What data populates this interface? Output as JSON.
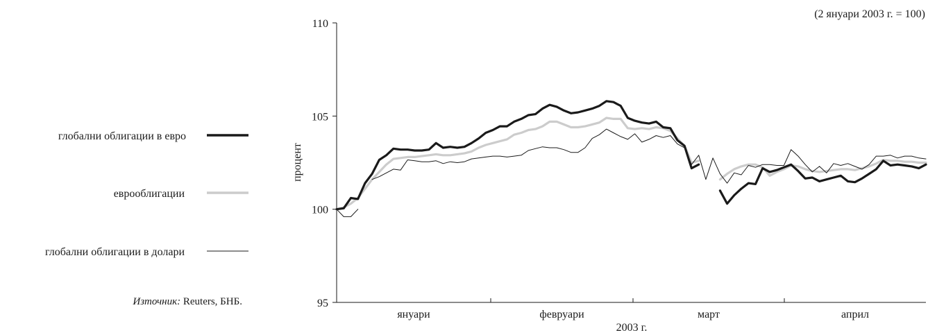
{
  "chart_data": {
    "type": "line",
    "note": "(2 януари 2003 г. = 100)",
    "xlabel": "2003 г.",
    "ylabel": "процент",
    "ylim": [
      95,
      110
    ],
    "yticks": [
      "95",
      "100",
      "105",
      "110"
    ],
    "months": [
      "януари",
      "февруари",
      "март",
      "април"
    ],
    "grid": false,
    "legend_position": "left",
    "series": [
      {
        "name": "глобални облигации в евро",
        "color": "#1a1a1a",
        "values": [
          100.0,
          100.05,
          100.6,
          100.55,
          101.4,
          101.9,
          102.65,
          102.9,
          103.25,
          103.2,
          103.2,
          103.15,
          103.15,
          103.2,
          103.55,
          103.3,
          103.35,
          103.3,
          103.35,
          103.55,
          103.8,
          104.1,
          104.25,
          104.45,
          104.45,
          104.7,
          104.85,
          105.05,
          105.1,
          105.4,
          105.6,
          105.5,
          105.3,
          105.15,
          105.2,
          105.3,
          105.4,
          105.55,
          105.8,
          105.75,
          105.55,
          104.9,
          104.75,
          104.65,
          104.6,
          104.7,
          104.4,
          104.35,
          103.7,
          103.4,
          102.2,
          102.4,
          null,
          null,
          101.0,
          100.3,
          100.75,
          101.1,
          101.4,
          101.35,
          102.2,
          102.0,
          102.1,
          102.25,
          102.4,
          102.05,
          101.65,
          101.7,
          101.5,
          101.6,
          101.7,
          101.8,
          101.5,
          101.45,
          101.65,
          101.9,
          102.15,
          102.6,
          102.35,
          102.4,
          102.35,
          102.3,
          102.2,
          102.4
        ]
      },
      {
        "name": "еврооблигации",
        "color": "#cccccc",
        "values": [
          100.0,
          100.1,
          100.3,
          100.6,
          101.1,
          101.6,
          102.0,
          102.4,
          102.7,
          102.75,
          102.8,
          102.8,
          102.85,
          102.9,
          102.95,
          102.9,
          102.9,
          102.95,
          103.0,
          103.1,
          103.3,
          103.45,
          103.55,
          103.65,
          103.75,
          104.0,
          104.1,
          104.25,
          104.3,
          104.45,
          104.7,
          104.7,
          104.55,
          104.4,
          104.4,
          104.45,
          104.55,
          104.65,
          104.9,
          104.85,
          104.85,
          104.35,
          104.3,
          104.35,
          104.3,
          104.4,
          104.35,
          104.2,
          103.8,
          103.4,
          102.5,
          102.6,
          null,
          null,
          101.6,
          101.9,
          102.15,
          102.3,
          102.4,
          102.4,
          102.25,
          101.8,
          102.0,
          102.15,
          102.35,
          102.3,
          102.15,
          102.05,
          102.0,
          102.05,
          102.1,
          102.15,
          102.15,
          102.1,
          102.2,
          102.3,
          102.45,
          102.65,
          102.6,
          102.6,
          102.55,
          102.55,
          102.5,
          102.5
        ]
      },
      {
        "name": "глобални облигации в долари",
        "color": "#1a1a1a",
        "values": [
          100.0,
          99.6,
          99.6,
          100.0,
          null,
          101.6,
          101.75,
          101.95,
          102.15,
          102.1,
          102.65,
          102.6,
          102.55,
          102.55,
          102.6,
          102.45,
          102.55,
          102.5,
          102.55,
          102.7,
          102.75,
          102.8,
          102.85,
          102.85,
          102.8,
          102.85,
          102.9,
          103.15,
          103.25,
          103.35,
          103.3,
          103.3,
          103.2,
          103.05,
          103.05,
          103.3,
          103.8,
          104.0,
          104.3,
          104.1,
          103.9,
          103.75,
          104.05,
          103.6,
          103.75,
          103.95,
          103.85,
          103.95,
          103.5,
          103.3,
          102.4,
          102.9,
          101.6,
          102.75,
          101.9,
          101.4,
          101.95,
          101.85,
          102.35,
          102.25,
          102.4,
          102.4,
          102.35,
          102.35,
          103.2,
          102.85,
          102.4,
          102.0,
          102.3,
          101.95,
          102.45,
          102.35,
          102.45,
          102.3,
          102.15,
          102.4,
          102.85,
          102.85,
          102.9,
          102.75,
          102.85,
          102.85,
          102.75,
          102.7
        ]
      }
    ]
  },
  "source": {
    "label": "Източник:",
    "text": " Reuters, БНБ."
  }
}
